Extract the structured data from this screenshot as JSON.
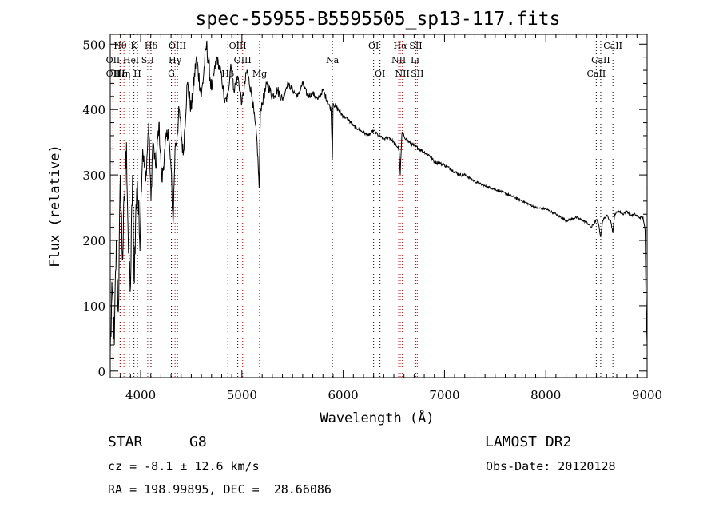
{
  "chart_data": {
    "type": "line",
    "title": "spec-55955-B5595505_sp13-117.fits",
    "xlabel": "Wavelength (Å)",
    "ylabel": "Flux (relative)",
    "xlim": [
      3700,
      9000
    ],
    "ylim": [
      -10,
      515
    ],
    "xticks": [
      4000,
      5000,
      6000,
      7000,
      8000,
      9000
    ],
    "yticks": [
      0,
      100,
      200,
      300,
      400,
      500
    ],
    "grid": false,
    "series": [
      {
        "line_color": "#000000",
        "x": [
          3700,
          3720,
          3740,
          3760,
          3780,
          3800,
          3820,
          3840,
          3860,
          3880,
          3900,
          3920,
          3934,
          3950,
          3968,
          3990,
          4020,
          4050,
          4080,
          4102,
          4120,
          4150,
          4180,
          4210,
          4240,
          4270,
          4300,
          4320,
          4340,
          4360,
          4380,
          4420,
          4460,
          4500,
          4550,
          4600,
          4650,
          4700,
          4750,
          4800,
          4830,
          4861,
          4890,
          4920,
          4960,
          5000,
          5050,
          5100,
          5150,
          5170,
          5183,
          5200,
          5250,
          5300,
          5350,
          5400,
          5450,
          5500,
          5550,
          5600,
          5650,
          5700,
          5750,
          5800,
          5850,
          5880,
          5893,
          5900,
          5950,
          6000,
          6050,
          6100,
          6150,
          6200,
          6250,
          6300,
          6350,
          6400,
          6450,
          6500,
          6550,
          6563,
          6580,
          6620,
          6650,
          6700,
          6750,
          6800,
          6850,
          6900,
          6950,
          7000,
          7050,
          7100,
          7150,
          7200,
          7300,
          7400,
          7500,
          7600,
          7700,
          7800,
          7900,
          8000,
          8100,
          8200,
          8300,
          8400,
          8450,
          8500,
          8520,
          8542,
          8560,
          8600,
          8640,
          8662,
          8680,
          8720,
          8760,
          8800,
          8840,
          8880,
          8920,
          8960,
          8980,
          8990,
          9000
        ],
        "y": [
          30,
          120,
          40,
          200,
          90,
          300,
          170,
          260,
          350,
          180,
          130,
          300,
          140,
          230,
          290,
          200,
          340,
          290,
          380,
          260,
          350,
          310,
          380,
          290,
          340,
          370,
          310,
          225,
          340,
          360,
          400,
          330,
          440,
          400,
          480,
          420,
          500,
          430,
          480,
          450,
          410,
          420,
          470,
          430,
          450,
          410,
          460,
          420,
          350,
          280,
          400,
          410,
          440,
          420,
          430,
          415,
          440,
          430,
          420,
          440,
          420,
          425,
          415,
          430,
          410,
          400,
          325,
          410,
          400,
          390,
          385,
          375,
          370,
          365,
          360,
          368,
          360,
          355,
          358,
          350,
          340,
          300,
          365,
          355,
          350,
          345,
          340,
          335,
          330,
          320,
          318,
          315,
          310,
          305,
          300,
          300,
          290,
          283,
          278,
          272,
          265,
          258,
          250,
          248,
          240,
          230,
          235,
          228,
          220,
          232,
          225,
          205,
          230,
          238,
          230,
          212,
          240,
          245,
          240,
          245,
          238,
          240,
          235,
          235,
          215,
          100,
          40
        ],
        "name": ""
      }
    ],
    "line_markers": [
      {
        "label": "Hθ",
        "x": 3798,
        "row": 0,
        "color": "#000"
      },
      {
        "label": "K",
        "x": 3934,
        "row": 0,
        "color": "#000"
      },
      {
        "label": "Hδ",
        "x": 4102,
        "row": 0,
        "color": "#000"
      },
      {
        "label": "OIII",
        "x": 4363,
        "row": 0,
        "color": "#000"
      },
      {
        "label": "OIII",
        "x": 4959,
        "row": 0,
        "color": "#000"
      },
      {
        "label": "OI",
        "x": 6300,
        "row": 0,
        "color": "#000"
      },
      {
        "label": "Hα",
        "x": 6563,
        "row": 0,
        "color": "#c00"
      },
      {
        "label": "SII",
        "x": 6717,
        "row": 0,
        "color": "#c00"
      },
      {
        "label": "CaII",
        "x": 8662,
        "row": 0,
        "color": "#000"
      },
      {
        "label": "OII",
        "x": 3727,
        "row": 1,
        "color": "#c00"
      },
      {
        "label": "He",
        "x": 3889,
        "row": 1,
        "color": "#c00"
      },
      {
        "label": "I",
        "x": 3968,
        "row": 1,
        "color": "#000"
      },
      {
        "label": "SII",
        "x": 4070,
        "row": 1,
        "color": "#c00"
      },
      {
        "label": "Hγ",
        "x": 4340,
        "row": 1,
        "color": "#c00"
      },
      {
        "label": "OIII",
        "x": 5007,
        "row": 1,
        "color": "#c00"
      },
      {
        "label": "Na",
        "x": 5893,
        "row": 1,
        "color": "#000"
      },
      {
        "label": "NII",
        "x": 6548,
        "row": 1,
        "color": "#c00"
      },
      {
        "label": "Li",
        "x": 6708,
        "row": 1,
        "color": "#c00"
      },
      {
        "label": "CaII",
        "x": 8542,
        "row": 1,
        "color": "#000"
      },
      {
        "label": "OII",
        "x": 3727,
        "row": 2,
        "color": "#c00"
      },
      {
        "label": "Hε",
        "x": 3797,
        "row": 2,
        "color": "#c00"
      },
      {
        "label": "Hη",
        "x": 3835,
        "row": 2,
        "color": "#c00"
      },
      {
        "label": "H",
        "x": 3968,
        "row": 2,
        "color": "#000"
      },
      {
        "label": "G",
        "x": 4304,
        "row": 2,
        "color": "#000"
      },
      {
        "label": "Hβ",
        "x": 4861,
        "row": 2,
        "color": "#c00"
      },
      {
        "label": "Mg",
        "x": 5175,
        "row": 2,
        "color": "#000"
      },
      {
        "label": "OI",
        "x": 6363,
        "row": 2,
        "color": "#000"
      },
      {
        "label": "NII",
        "x": 6584,
        "row": 2,
        "color": "#c00"
      },
      {
        "label": "SII",
        "x": 6731,
        "row": 2,
        "color": "#c00"
      },
      {
        "label": "CaII",
        "x": 8498,
        "row": 2,
        "color": "#000"
      }
    ]
  },
  "info": {
    "object_class": "STAR",
    "subclass": "G8",
    "survey": "LAMOST DR2",
    "redshift": "cz = -8.1 ± 12.6 km/s",
    "obs_date": "Obs-Date: 20120128",
    "coordinates": "RA = 198.99895, DEC =  28.66086"
  }
}
